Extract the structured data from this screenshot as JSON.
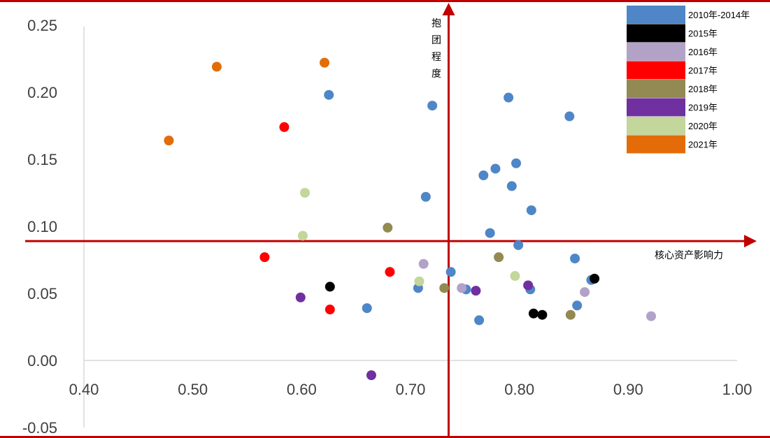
{
  "chart_data": {
    "type": "scatter",
    "title": "",
    "xlabel": "核心资产影响力",
    "ylabel": "抱团程度",
    "xlim": [
      0.4,
      1.0
    ],
    "ylim": [
      -0.05,
      0.25
    ],
    "x_ticks": [
      "0.40",
      "0.50",
      "0.60",
      "0.70",
      "0.80",
      "0.90",
      "1.00"
    ],
    "y_ticks": [
      "0.25",
      "0.20",
      "0.15",
      "0.10",
      "0.05",
      "0.00",
      "-0.05"
    ],
    "quadrant_lines": {
      "x": 0.735,
      "y": 0.089,
      "color": "#c00000"
    },
    "grid": false,
    "legend_position": "top-right",
    "series": [
      {
        "name": "2010年-2014年",
        "color": "#4e86c7",
        "points": [
          [
            0.625,
            0.198
          ],
          [
            0.72,
            0.19
          ],
          [
            0.79,
            0.196
          ],
          [
            0.846,
            0.182
          ],
          [
            0.797,
            0.147
          ],
          [
            0.778,
            0.143
          ],
          [
            0.767,
            0.138
          ],
          [
            0.793,
            0.13
          ],
          [
            0.714,
            0.122
          ],
          [
            0.811,
            0.112
          ],
          [
            0.773,
            0.095
          ],
          [
            0.799,
            0.086
          ],
          [
            0.851,
            0.076
          ],
          [
            0.737,
            0.066
          ],
          [
            0.707,
            0.054
          ],
          [
            0.751,
            0.053
          ],
          [
            0.81,
            0.053
          ],
          [
            0.866,
            0.06
          ],
          [
            0.853,
            0.041
          ],
          [
            0.66,
            0.039
          ],
          [
            0.763,
            0.03
          ]
        ]
      },
      {
        "name": "2015年",
        "color": "#000000",
        "points": [
          [
            0.626,
            0.055
          ],
          [
            0.813,
            0.035
          ],
          [
            0.821,
            0.034
          ],
          [
            0.869,
            0.061
          ]
        ]
      },
      {
        "name": "2016年",
        "color": "#b3a2c7",
        "points": [
          [
            0.712,
            0.072
          ],
          [
            0.747,
            0.054
          ],
          [
            0.86,
            0.051
          ],
          [
            0.921,
            0.033
          ]
        ]
      },
      {
        "name": "2017年",
        "color": "#ff0000",
        "points": [
          [
            0.584,
            0.174
          ],
          [
            0.566,
            0.077
          ],
          [
            0.681,
            0.066
          ],
          [
            0.626,
            0.038
          ]
        ]
      },
      {
        "name": "2018年",
        "color": "#938953",
        "points": [
          [
            0.679,
            0.099
          ],
          [
            0.781,
            0.077
          ],
          [
            0.731,
            0.054
          ],
          [
            0.847,
            0.034
          ]
        ]
      },
      {
        "name": "2019年",
        "color": "#7030a0",
        "points": [
          [
            0.599,
            0.047
          ],
          [
            0.76,
            0.052
          ],
          [
            0.808,
            0.056
          ]
        ]
      },
      {
        "name": "2020年",
        "color": "#c3d69b",
        "points": [
          [
            0.603,
            0.125
          ],
          [
            0.601,
            0.093
          ],
          [
            0.708,
            0.059
          ],
          [
            0.796,
            0.063
          ]
        ]
      },
      {
        "name": "2021年",
        "color": "#e36c09",
        "points": [
          [
            0.478,
            0.164
          ],
          [
            0.522,
            0.219
          ],
          [
            0.621,
            0.222
          ]
        ]
      }
    ],
    "stray_marker": {
      "x": 0.664,
      "y": -0.011,
      "color": "#7030a0"
    }
  }
}
